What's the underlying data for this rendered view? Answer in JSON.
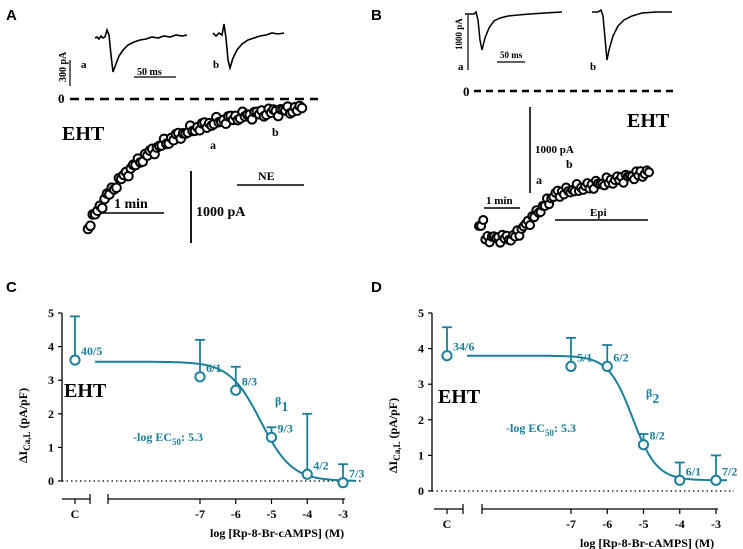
{
  "panels": {
    "A": {
      "letter": "A",
      "trace_scale_label": "300 pA",
      "trace_time_label": "50 ms",
      "trace_a_label": "a",
      "trace_b_label": "b",
      "zero_label": "0",
      "ehs_label": "EHT",
      "point_a_label": "a",
      "point_b_label": "b",
      "drug_label": "NE",
      "time_scale_label": "1 min",
      "current_scale_label": "1000 pA"
    },
    "B": {
      "letter": "B",
      "trace_scale_label": "1000 pA",
      "trace_time_label": "50 ms",
      "trace_a_label": "a",
      "trace_b_label": "b",
      "zero_label": "0",
      "ehs_label": "EHT",
      "point_a_label": "a",
      "point_b_label": "b",
      "drug_label": "Epi",
      "time_scale_label": "1 min",
      "current_scale_label": "1000 pA"
    },
    "C": {
      "letter": "C",
      "ehs_label": "EHT",
      "receptor_label": "β",
      "receptor_sub": "1",
      "ec50_text": "-log EC",
      "ec50_sub": "50",
      "ec50_value": ": 5.3"
    },
    "D": {
      "letter": "D",
      "ehs_label": "EHT",
      "receptor_label": "β",
      "receptor_sub": "2",
      "ec50_text": "-log EC",
      "ec50_sub": "50",
      "ec50_value": ": 5.3"
    }
  },
  "chart_data": [
    {
      "panel": "C",
      "type": "scatter",
      "title": "",
      "ylabel": "ΔI_Ca,L (pA/pF)",
      "ylabel_main": "ΔI",
      "ylabel_sub": "Ca,L",
      "ylabel_unit": " (pA/pF)",
      "xlabel": "log [Rp-8-Br-cAMPS] (M)",
      "ylim": [
        0,
        5
      ],
      "yticks": [
        "0",
        "1",
        "2",
        "3",
        "4",
        "5"
      ],
      "xticks": [
        "C",
        "-7",
        "-6",
        "-5",
        "-4",
        "-3"
      ],
      "x": [
        -7,
        -6,
        -5,
        -4,
        -3
      ],
      "values": [
        3.1,
        2.7,
        1.3,
        0.2,
        -0.05
      ],
      "errors": [
        1.1,
        0.7,
        0.3,
        1.8,
        0.55
      ],
      "n_labels": [
        "6/1",
        "8/3",
        "9/3",
        "4/2",
        "7/3"
      ],
      "control": {
        "label": "C",
        "value": 3.6,
        "error": 1.3,
        "n_label": "40/5"
      },
      "fit": {
        "top": 3.55,
        "bottom": 0.0,
        "logEC50": -5.3,
        "hill": 1.0
      },
      "color": "#1a7f99"
    },
    {
      "panel": "D",
      "type": "scatter",
      "title": "",
      "ylabel": "ΔI_Ca,L (pA/pF)",
      "ylabel_main": "ΔI",
      "ylabel_sub": "Ca,L",
      "ylabel_unit": " (pA/pF)",
      "xlabel": "log [Rp-8-Br-cAMPS] (M)",
      "ylim": [
        0,
        5
      ],
      "yticks": [
        "0",
        "1",
        "2",
        "3",
        "4",
        "5"
      ],
      "xticks": [
        "C",
        "-7",
        "-6",
        "-5",
        "-4",
        "-3"
      ],
      "x": [
        -7,
        -6,
        -5,
        -4,
        -3
      ],
      "values": [
        3.5,
        3.5,
        1.3,
        0.3,
        0.3
      ],
      "errors": [
        0.8,
        0.6,
        0.3,
        0.5,
        0.7
      ],
      "n_labels": [
        "5/1",
        "6/2",
        "8/2",
        "6/1",
        "7/2"
      ],
      "control": {
        "label": "C",
        "value": 3.8,
        "error": 0.8,
        "n_label": "34/6"
      },
      "fit": {
        "top": 3.8,
        "bottom": 0.3,
        "logEC50": -5.3,
        "hill": 1.3
      },
      "color": "#1a7f99"
    }
  ]
}
